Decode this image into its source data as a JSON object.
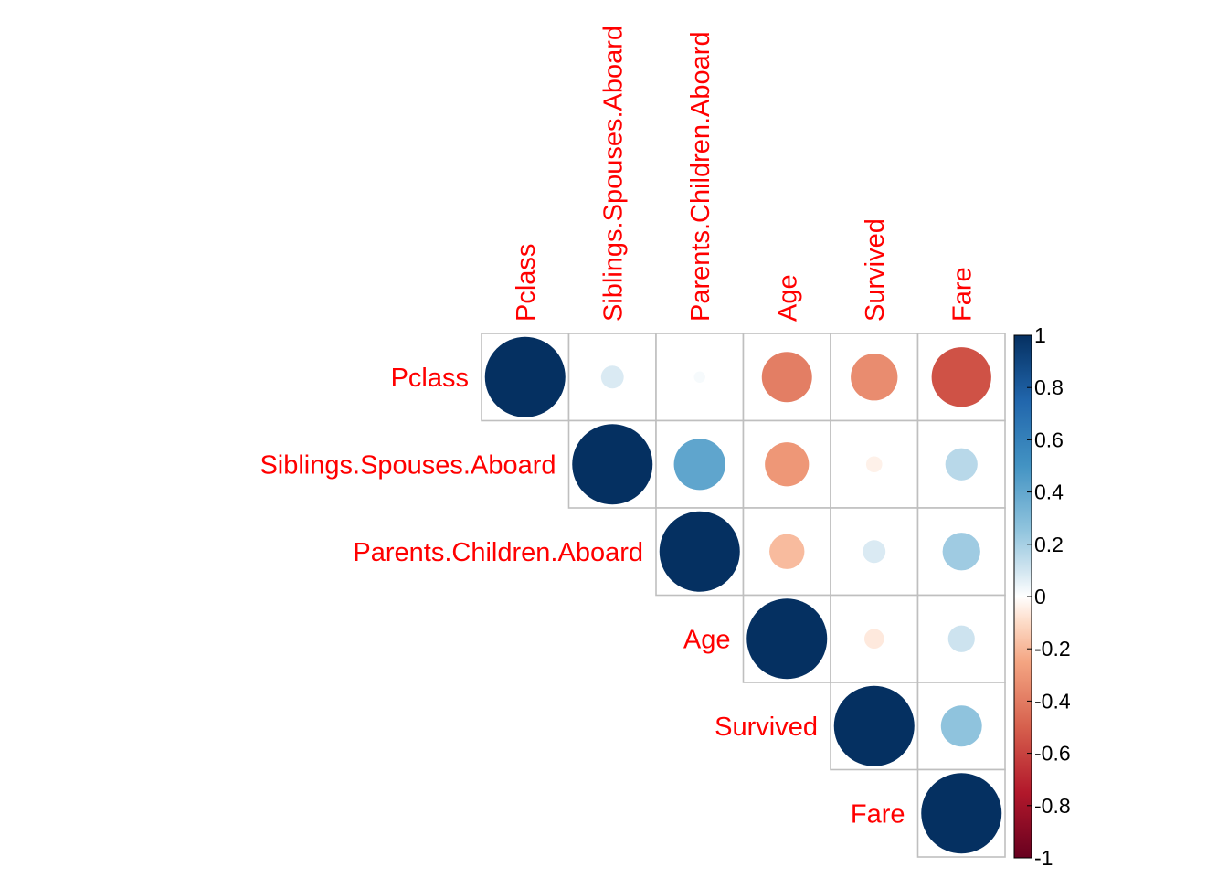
{
  "chart_data": {
    "type": "heatmap",
    "style": "upper-triangle correlation matrix, circle glyphs",
    "variables": [
      "Pclass",
      "Siblings.Spouses.Aboard",
      "Parents.Children.Aboard",
      "Age",
      "Survived",
      "Fare"
    ],
    "correlations": [
      [
        1.0,
        0.08,
        0.02,
        -0.39,
        -0.34,
        -0.55
      ],
      [
        0.08,
        1.0,
        0.41,
        -0.3,
        -0.04,
        0.16
      ],
      [
        0.02,
        0.41,
        1.0,
        -0.19,
        0.08,
        0.22
      ],
      [
        -0.39,
        -0.3,
        -0.19,
        1.0,
        -0.06,
        0.11
      ],
      [
        -0.34,
        -0.04,
        0.08,
        -0.06,
        1.0,
        0.26
      ],
      [
        -0.55,
        0.16,
        0.22,
        0.11,
        0.26,
        1.0
      ]
    ],
    "colorbar": {
      "range": [
        -1,
        1
      ],
      "tick_labels": [
        "1",
        "0.8",
        "0.6",
        "0.4",
        "0.2",
        "0",
        "-0.2",
        "-0.4",
        "-0.6",
        "-0.8",
        "-1"
      ],
      "tick_values": [
        1,
        0.8,
        0.6,
        0.4,
        0.2,
        0,
        -0.2,
        -0.4,
        -0.6,
        -0.8,
        -1
      ],
      "palette": [
        [
          -1.0,
          "#67001f"
        ],
        [
          -0.75,
          "#b2182b"
        ],
        [
          -0.5,
          "#d6604d"
        ],
        [
          -0.25,
          "#f4a582"
        ],
        [
          -0.1,
          "#fddbc7"
        ],
        [
          0.0,
          "#ffffff"
        ],
        [
          0.1,
          "#d1e5f0"
        ],
        [
          0.25,
          "#92c5de"
        ],
        [
          0.5,
          "#4393c3"
        ],
        [
          0.75,
          "#2166ac"
        ],
        [
          1.0,
          "#053061"
        ]
      ]
    },
    "label_color": "#ff0000",
    "grid_color": "#bfbfbf"
  }
}
